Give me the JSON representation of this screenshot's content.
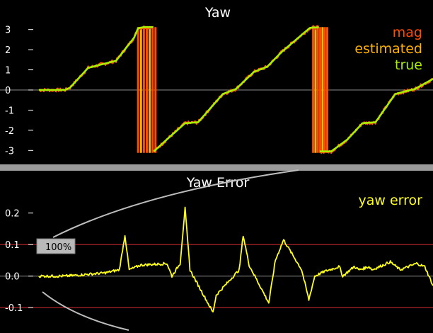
{
  "chart_data": [
    {
      "type": "line",
      "title": "Yaw",
      "ylim": [
        -3.2,
        3.2
      ],
      "yticks": [
        3,
        2,
        1,
        0,
        -1,
        -2,
        -3
      ],
      "grid": "zero-line only",
      "legend": "top-right",
      "series": [
        {
          "name": "mag",
          "color": "#ff4d00",
          "x": [
            0.0,
            0.3,
            0.35,
            0.8,
            0.95,
            1.5,
            2.35,
            2.9,
            3.02,
            3.2,
            3.5,
            3.9,
            4.45,
            4.85,
            5.6,
            6.0,
            6.55,
            6.95,
            7.4,
            8.25,
            8.35,
            8.55,
            8.9,
            9.4,
            9.85,
            10.25,
            10.85,
            11.45,
            12.0
          ],
          "y": [
            0.0,
            0.0,
            0.0,
            0.0,
            0.12,
            1.1,
            1.45,
            2.6,
            3.07,
            3.12,
            -3.05,
            -2.45,
            -1.65,
            -1.6,
            -0.2,
            0.05,
            0.9,
            1.15,
            1.9,
            3.08,
            3.1,
            -3.05,
            -3.05,
            -2.45,
            -1.65,
            -1.6,
            -0.2,
            0.05,
            0.55
          ]
        },
        {
          "name": "estimated",
          "color": "#ffb000",
          "x": [
            0.0,
            0.3,
            0.35,
            0.8,
            0.95,
            1.5,
            2.35,
            2.9,
            3.02,
            3.2,
            3.5,
            3.9,
            4.45,
            4.85,
            5.6,
            6.0,
            6.55,
            6.95,
            7.4,
            8.25,
            8.35,
            8.55,
            8.9,
            9.4,
            9.85,
            10.25,
            10.85,
            11.45,
            12.0
          ],
          "y": [
            0.0,
            0.0,
            0.0,
            0.0,
            0.12,
            1.1,
            1.45,
            2.6,
            3.07,
            3.12,
            -3.05,
            -2.45,
            -1.65,
            -1.6,
            -0.2,
            0.05,
            0.9,
            1.15,
            1.9,
            3.08,
            3.1,
            -3.05,
            -3.05,
            -2.45,
            -1.65,
            -1.6,
            -0.2,
            0.05,
            0.55
          ]
        },
        {
          "name": "true",
          "color": "#a8ee00",
          "x": [
            0.0,
            0.3,
            0.35,
            0.8,
            0.95,
            1.5,
            2.35,
            2.9,
            3.02,
            3.2,
            3.5,
            3.9,
            4.45,
            4.85,
            5.6,
            6.0,
            6.55,
            6.95,
            7.4,
            8.25,
            8.35,
            8.55,
            8.9,
            9.4,
            9.85,
            10.25,
            10.85,
            11.45,
            12.0
          ],
          "y": [
            0.0,
            0.0,
            0.0,
            0.0,
            0.12,
            1.1,
            1.45,
            2.6,
            3.07,
            3.12,
            -3.05,
            -2.45,
            -1.65,
            -1.6,
            -0.2,
            0.05,
            0.9,
            1.15,
            1.9,
            3.08,
            3.1,
            -3.05,
            -3.05,
            -2.45,
            -1.65,
            -1.6,
            -0.2,
            0.05,
            0.55
          ]
        }
      ],
      "wrap_bands": [
        {
          "x_start": 3.02,
          "x_end": 3.55,
          "color": "#ff4d00"
        },
        {
          "x_start": 8.35,
          "x_end": 8.78,
          "color": "#ff4d00"
        }
      ]
    },
    {
      "type": "line",
      "title": "Yaw Error",
      "ylim": [
        -0.14,
        0.26
      ],
      "yticks": [
        0.2,
        0.1,
        0.0,
        -0.1
      ],
      "ytick_labels": [
        "0.2",
        "0.1",
        "0.0",
        "-0.1"
      ],
      "grid": "zero-line only",
      "thresholds": [
        0.1,
        -0.1
      ],
      "legend": "top-right",
      "series": [
        {
          "name": "yaw error",
          "color": "#ffff1a",
          "x": [
            0.0,
            0.8,
            2.0,
            2.45,
            2.62,
            2.75,
            3.1,
            3.9,
            4.05,
            4.3,
            4.45,
            4.6,
            4.7,
            5.3,
            5.4,
            6.1,
            6.22,
            6.4,
            7.0,
            7.2,
            7.45,
            8.0,
            8.22,
            8.4,
            8.7,
            9.15,
            9.25,
            9.6,
            9.75,
            10.05,
            10.15,
            10.7,
            11.0,
            11.5,
            11.75,
            12.0
          ],
          "y": [
            0.0,
            0.0,
            0.01,
            0.02,
            0.13,
            0.02,
            0.035,
            0.04,
            0.0,
            0.04,
            0.215,
            0.02,
            0.0,
            -0.115,
            -0.06,
            0.02,
            0.13,
            0.035,
            -0.085,
            0.05,
            0.115,
            0.02,
            -0.075,
            0.0,
            0.015,
            0.03,
            0.0,
            0.03,
            0.02,
            0.03,
            0.02,
            0.045,
            0.02,
            0.04,
            0.03,
            -0.03
          ]
        }
      ]
    }
  ],
  "overlay": {
    "zoom_label": "100%"
  }
}
